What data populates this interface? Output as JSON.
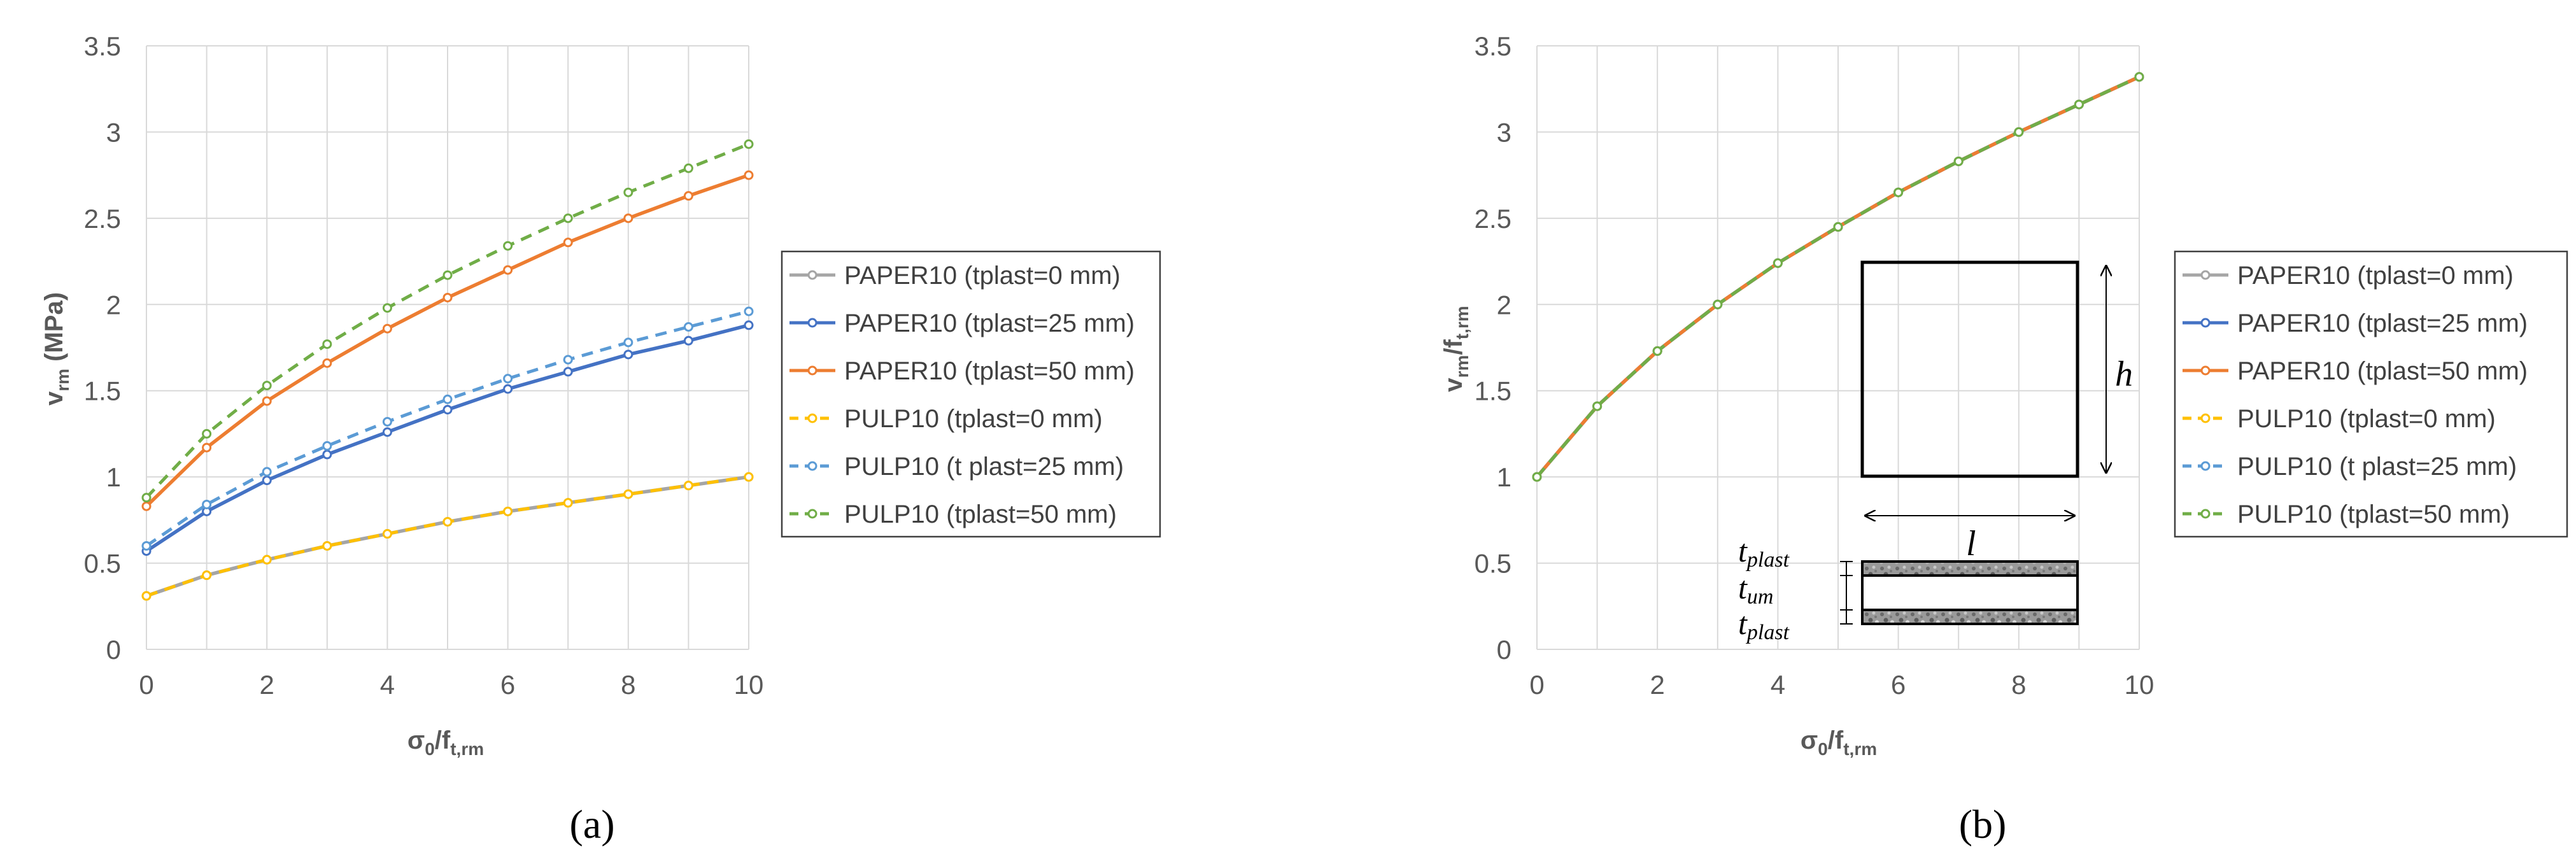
{
  "figure": {
    "panel_a": "(a)",
    "panel_b": "(b)"
  },
  "diagram": {
    "h_label": "h",
    "l_label": "l",
    "t_plast_top": "t",
    "t_plast_top_sub": "plast",
    "t_um": "t",
    "t_um_sub": "um",
    "t_plast_bottom": "t",
    "t_plast_bottom_sub": "plast"
  },
  "chart_data": [
    {
      "type": "line",
      "title": "",
      "xlabel": "σ0/ft,rm",
      "xlabel_parts": [
        "σ",
        "0",
        "/f",
        "t,rm"
      ],
      "ylabel": "vrm (MPa)",
      "ylabel_parts": [
        "v",
        "rm",
        " (MPa)"
      ],
      "xlim": [
        0,
        10
      ],
      "ylim": [
        0,
        3.5
      ],
      "xticks": [
        "0",
        "2",
        "4",
        "6",
        "8",
        "10"
      ],
      "yticks": [
        "0",
        "0.5",
        "1",
        "1.5",
        "2",
        "2.5",
        "3",
        "3.5"
      ],
      "grid": true,
      "legend_position": "right",
      "x": [
        0,
        1,
        2,
        3,
        4,
        5,
        6,
        7,
        8,
        9,
        10
      ],
      "series": [
        {
          "name": "PAPER10 (tplast=0 mm)",
          "color": "#a5a5a5",
          "dash": false,
          "values": [
            0.31,
            0.43,
            0.52,
            0.6,
            0.67,
            0.74,
            0.8,
            0.85,
            0.9,
            0.95,
            1.0
          ]
        },
        {
          "name": "PAPER10 (tplast=25 mm)",
          "color": "#4472c4",
          "dash": false,
          "values": [
            0.57,
            0.8,
            0.98,
            1.13,
            1.26,
            1.39,
            1.51,
            1.61,
            1.71,
            1.79,
            1.88
          ]
        },
        {
          "name": "PAPER10 (tplast=50 mm)",
          "color": "#ed7d31",
          "dash": false,
          "values": [
            0.83,
            1.17,
            1.44,
            1.66,
            1.86,
            2.04,
            2.2,
            2.36,
            2.5,
            2.63,
            2.75
          ]
        },
        {
          "name": "PULP10 (tplast=0 mm)",
          "color": "#ffc000",
          "dash": true,
          "values": [
            0.31,
            0.43,
            0.52,
            0.6,
            0.67,
            0.74,
            0.8,
            0.85,
            0.9,
            0.95,
            1.0
          ]
        },
        {
          "name": "PULP10 (t plast=25 mm)",
          "color": "#5b9bd5",
          "dash": true,
          "values": [
            0.6,
            0.84,
            1.03,
            1.18,
            1.32,
            1.45,
            1.57,
            1.68,
            1.78,
            1.87,
            1.96
          ]
        },
        {
          "name": "PULP10 (tplast=50 mm)",
          "color": "#70ad47",
          "dash": true,
          "values": [
            0.88,
            1.25,
            1.53,
            1.77,
            1.98,
            2.17,
            2.34,
            2.5,
            2.65,
            2.79,
            2.93
          ]
        }
      ]
    },
    {
      "type": "line",
      "title": "",
      "xlabel": "σ0/ft,rm",
      "xlabel_parts": [
        "σ",
        "0",
        "/f",
        "t,rm"
      ],
      "ylabel": "vrm/ft,rm",
      "ylabel_parts": [
        "v",
        "rm",
        "/f",
        "t,rm"
      ],
      "xlim": [
        0,
        10
      ],
      "ylim": [
        0,
        3.5
      ],
      "xticks": [
        "0",
        "2",
        "4",
        "6",
        "8",
        "10"
      ],
      "yticks": [
        "0",
        "0.5",
        "1",
        "1.5",
        "2",
        "2.5",
        "3",
        "3.5"
      ],
      "grid": true,
      "legend_position": "right",
      "x": [
        0,
        1,
        2,
        3,
        4,
        5,
        6,
        7,
        8,
        9,
        10
      ],
      "series": [
        {
          "name": "PAPER10 (tplast=0 mm)",
          "color": "#a5a5a5",
          "dash": false,
          "values": [
            1.0,
            1.41,
            1.73,
            2.0,
            2.24,
            2.45,
            2.65,
            2.83,
            3.0,
            3.16,
            3.32
          ]
        },
        {
          "name": "PAPER10 (tplast=25 mm)",
          "color": "#4472c4",
          "dash": false,
          "values": [
            1.0,
            1.41,
            1.73,
            2.0,
            2.24,
            2.45,
            2.65,
            2.83,
            3.0,
            3.16,
            3.32
          ]
        },
        {
          "name": "PAPER10 (tplast=50 mm)",
          "color": "#ed7d31",
          "dash": false,
          "values": [
            1.0,
            1.41,
            1.73,
            2.0,
            2.24,
            2.45,
            2.65,
            2.83,
            3.0,
            3.16,
            3.32
          ]
        },
        {
          "name": "PULP10 (tplast=0 mm)",
          "color": "#ffc000",
          "dash": true,
          "values": [
            1.0,
            1.41,
            1.73,
            2.0,
            2.24,
            2.45,
            2.65,
            2.83,
            3.0,
            3.16,
            3.32
          ]
        },
        {
          "name": "PULP10 (t plast=25 mm)",
          "color": "#5b9bd5",
          "dash": true,
          "values": [
            1.0,
            1.41,
            1.73,
            2.0,
            2.24,
            2.45,
            2.65,
            2.83,
            3.0,
            3.16,
            3.32
          ]
        },
        {
          "name": "PULP10 (tplast=50 mm)",
          "color": "#70ad47",
          "dash": true,
          "values": [
            1.0,
            1.41,
            1.73,
            2.0,
            2.24,
            2.45,
            2.65,
            2.83,
            3.0,
            3.16,
            3.32
          ]
        }
      ]
    }
  ]
}
